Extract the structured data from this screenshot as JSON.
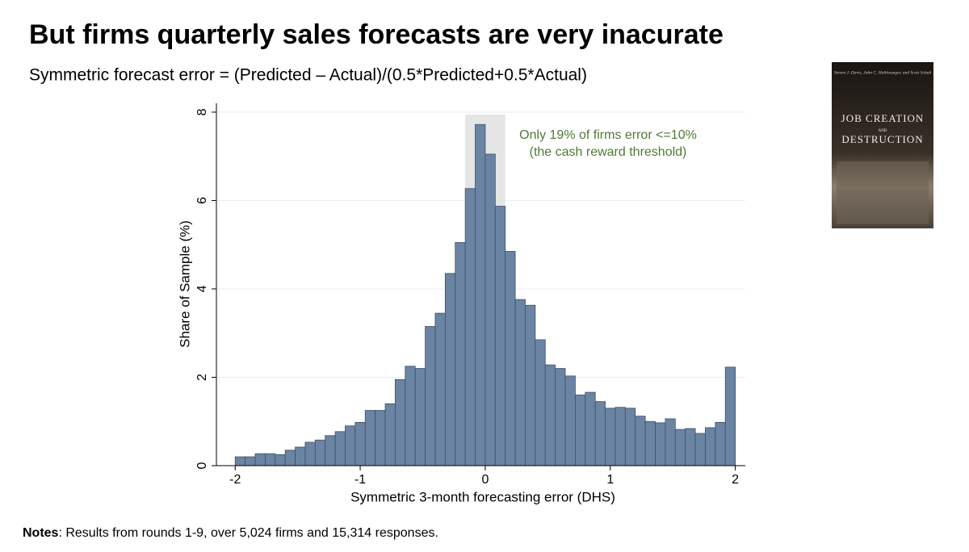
{
  "chart_data": {
    "type": "histogram",
    "title": "But firms quarterly sales forecasts are very inacurate",
    "subtitle": "Symmetric forecast error = (Predicted – Actual)/(0.5*Predicted+0.5*Actual)",
    "xlabel": "Symmetric 3-month forecasting error (DHS)",
    "ylabel": "Share of Sample (%)",
    "annotation": [
      "Only 19% of firms error <=10%",
      "(the cash reward threshold)"
    ],
    "bins": [
      -2,
      -1.92,
      -1.84,
      -1.76,
      -1.68,
      -1.6,
      -1.52,
      -1.44,
      -1.36,
      -1.28,
      -1.2,
      -1.12,
      -1.04,
      -0.96,
      -0.88,
      -0.8,
      -0.72,
      -0.64,
      -0.56,
      -0.48,
      -0.4,
      -0.32,
      -0.24,
      -0.16,
      -0.08,
      0,
      0.08,
      0.16,
      0.24,
      0.32,
      0.4,
      0.48,
      0.56,
      0.64,
      0.72,
      0.8,
      0.88,
      0.96,
      1.04,
      1.12,
      1.2,
      1.28,
      1.36,
      1.44,
      1.52,
      1.6,
      1.68,
      1.76,
      1.84,
      1.92,
      2
    ],
    "values": [
      0.2,
      0.2,
      0.27,
      0.27,
      0.25,
      0.35,
      0.42,
      0.53,
      0.58,
      0.68,
      0.77,
      0.9,
      0.98,
      1.25,
      1.25,
      1.4,
      1.95,
      2.25,
      2.2,
      3.15,
      3.45,
      4.35,
      5.05,
      6.27,
      7.72,
      7.05,
      5.87,
      4.85,
      3.76,
      3.63,
      2.85,
      2.28,
      2.2,
      2.03,
      1.6,
      1.66,
      1.45,
      1.3,
      1.32,
      1.3,
      1.12,
      1.0,
      0.97,
      1.06,
      0.82,
      0.84,
      0.73,
      0.86,
      0.98,
      2.23
    ],
    "color": "#6b84a3",
    "edge_color": "#3d4f66",
    "highlight_range": [
      -0.16,
      0.16
    ],
    "highlight_color": "#e5e5e5",
    "annotation_color": "#4f7a35",
    "xlim": [
      -2.15,
      2.08
    ],
    "xticks": [
      -2,
      -1,
      0,
      1,
      2
    ],
    "ylim": [
      0,
      8.2
    ],
    "yticks": [
      0,
      2,
      4,
      6,
      8
    ],
    "grid": true
  },
  "notes": {
    "label": "Notes",
    "text": ": Results from rounds 1-9, over 5,024 firms and 15,314 responses."
  },
  "book": {
    "authors": "Steven J. Davis, John C. Haltiwanger, and Scott Schuh",
    "title_top": "JOB CREATION",
    "title_and": "AND",
    "title_bottom": "DESTRUCTION"
  }
}
